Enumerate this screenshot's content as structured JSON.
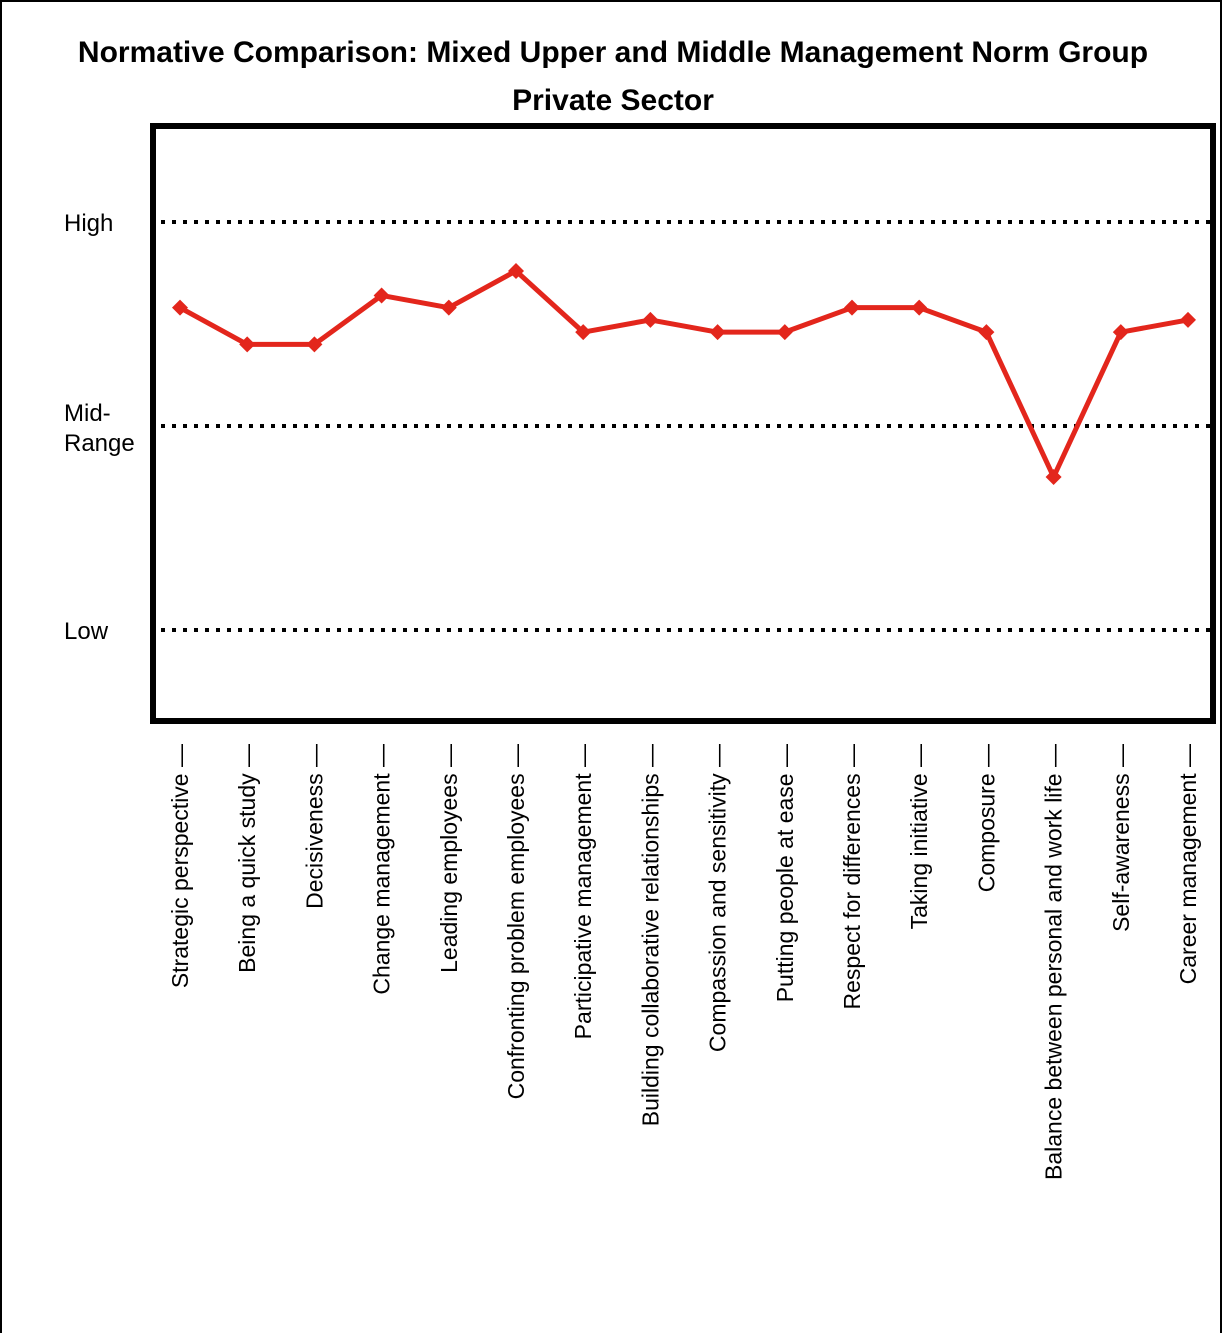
{
  "chart_data": {
    "type": "line",
    "title": "Normative Comparison: Mixed Upper and Middle Management Norm Group",
    "subtitle": "Private Sector",
    "y_levels": [
      {
        "label": "High",
        "value": 2
      },
      {
        "label": "Mid-Range",
        "value": 1
      },
      {
        "label": "Low",
        "value": 0
      }
    ],
    "ylim": [
      -0.45,
      2.3
    ],
    "grid_style": "dotted",
    "categories": [
      "Strategic perspective",
      "Being a quick study",
      "Decisiveness",
      "Change management",
      "Leading employees",
      "Confronting problem employees",
      "Participative management",
      "Building collaborative relationships",
      "Compassion and sensitivity",
      "Putting people at ease",
      "Respect for differences",
      "Taking initiative",
      "Composure",
      "Balance between personal and work life",
      "Self-awareness",
      "Career management"
    ],
    "series": [
      {
        "values": [
          1.58,
          1.4,
          1.4,
          1.64,
          1.58,
          1.76,
          1.46,
          1.52,
          1.46,
          1.46,
          1.58,
          1.58,
          1.46,
          0.75,
          1.46,
          1.52
        ],
        "color": "#e3261c",
        "marker": "diamond"
      }
    ]
  }
}
